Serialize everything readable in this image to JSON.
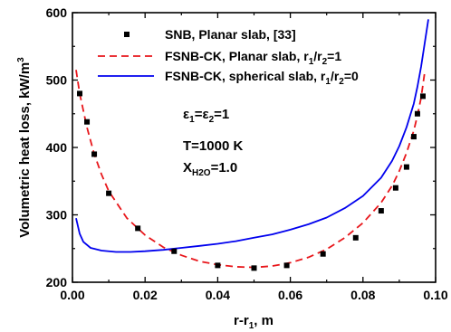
{
  "chart_data": {
    "type": "line",
    "xlabel_main": "r-r",
    "xlabel_sub": "1",
    "xlabel_tail": ", m",
    "ylabel_main": "Volumetric heat loss, kW/m",
    "ylabel_sup": "3",
    "xlim": [
      0.0,
      0.1
    ],
    "ylim": [
      200,
      600
    ],
    "x_ticks": [
      0.0,
      0.02,
      0.04,
      0.06,
      0.08,
      0.1
    ],
    "x_tick_labels": [
      "0.00",
      "0.02",
      "0.04",
      "0.06",
      "0.08",
      "0.10"
    ],
    "y_ticks": [
      200,
      300,
      400,
      500,
      600
    ],
    "y_tick_labels": [
      "200",
      "300",
      "400",
      "500",
      "600"
    ],
    "grid": false,
    "legend_position": "top",
    "series": [
      {
        "name": "SNB, Planar slab, [33]",
        "name_parts": [
          "SNB, Planar slab, [33]"
        ],
        "style": "markers",
        "marker": "square",
        "color": "#000000",
        "x": [
          0.002,
          0.004,
          0.006,
          0.01,
          0.018,
          0.028,
          0.04,
          0.05,
          0.059,
          0.069,
          0.078,
          0.085,
          0.089,
          0.092,
          0.094,
          0.095,
          0.0965
        ],
        "y": [
          480,
          438,
          390,
          332,
          280,
          246,
          225,
          221,
          225,
          242,
          266,
          306,
          340,
          371,
          416,
          450,
          476
        ]
      },
      {
        "name": "FSNB-CK, Planar slab, r1/r2=1",
        "name_parts": [
          "FSNB-CK, Planar slab, r",
          "1",
          "/r",
          "2",
          "=1"
        ],
        "style": "dashed",
        "color": "#e8161b",
        "x": [
          0.001,
          0.002,
          0.004,
          0.006,
          0.008,
          0.01,
          0.015,
          0.02,
          0.025,
          0.03,
          0.035,
          0.04,
          0.045,
          0.05,
          0.055,
          0.06,
          0.065,
          0.07,
          0.075,
          0.08,
          0.085,
          0.088,
          0.09,
          0.092,
          0.094,
          0.095,
          0.096,
          0.097
        ],
        "y": [
          515,
          480,
          430,
          390,
          360,
          335,
          295,
          270,
          252,
          240,
          231,
          226,
          223,
          222,
          224,
          229,
          237,
          249,
          266,
          288,
          318,
          343,
          365,
          392,
          425,
          447,
          474,
          512
        ]
      },
      {
        "name": "FSNB-CK, spherical slab, r1/r2=0",
        "name_parts": [
          "FSNB-CK, spherical slab, r",
          "1",
          "/r",
          "2",
          "=0"
        ],
        "style": "solid",
        "color": "#0000ee",
        "x": [
          0.001,
          0.002,
          0.003,
          0.005,
          0.008,
          0.012,
          0.016,
          0.02,
          0.025,
          0.03,
          0.035,
          0.04,
          0.045,
          0.05,
          0.055,
          0.06,
          0.065,
          0.07,
          0.075,
          0.08,
          0.085,
          0.088,
          0.09,
          0.092,
          0.094,
          0.095,
          0.096,
          0.097,
          0.098
        ],
        "y": [
          295,
          272,
          260,
          251,
          247,
          245,
          245,
          246,
          248,
          251,
          254,
          257,
          261,
          266,
          271,
          278,
          286,
          296,
          310,
          328,
          355,
          380,
          402,
          430,
          465,
          490,
          520,
          555,
          590
        ]
      }
    ],
    "annotations": [
      {
        "id": "emissivity",
        "parts": [
          "ε",
          "1",
          "=ε",
          "2",
          "=1"
        ]
      },
      {
        "id": "temperature",
        "parts": [
          "T=1000 K"
        ]
      },
      {
        "id": "mole-fraction",
        "parts": [
          "X",
          "H2O",
          "=1.0"
        ]
      }
    ]
  }
}
